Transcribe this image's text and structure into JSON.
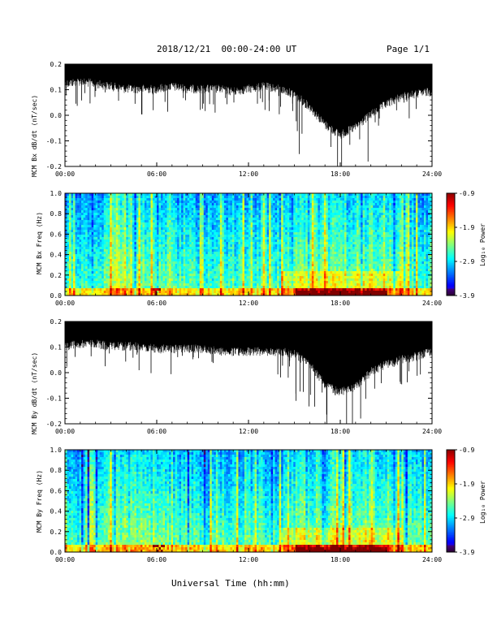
{
  "header": {
    "date_range": "2018/12/21  00:00-24:00 UT",
    "page": "Page 1/1"
  },
  "x_axis_title": "Universal Time (hh:mm)",
  "chart_data": [
    {
      "type": "line",
      "ylabel": "MCM Bx dB/dt (nT/sec)",
      "xlim": [
        0,
        24
      ],
      "ylim": [
        -0.2,
        0.2
      ],
      "x_ticks": [
        "00:00",
        "06:00",
        "12:00",
        "18:00",
        "24:00"
      ],
      "y_ticks": [
        "0.2",
        "0.1",
        "0.0",
        "-0.1",
        "-0.2"
      ],
      "envelope": {
        "hours": [
          0,
          1,
          2,
          3,
          4,
          5,
          6,
          7,
          8,
          9,
          10,
          11,
          12,
          13,
          14,
          15,
          16,
          17,
          18,
          19,
          20,
          21,
          22,
          23,
          24
        ],
        "upper": [
          0.2,
          0.2,
          0.2,
          0.2,
          0.2,
          0.2,
          0.2,
          0.2,
          0.2,
          0.2,
          0.2,
          0.2,
          0.2,
          0.2,
          0.2,
          0.2,
          0.2,
          0.2,
          0.2,
          0.2,
          0.2,
          0.2,
          0.2,
          0.2,
          0.2
        ],
        "lower": [
          0.14,
          0.15,
          0.14,
          0.13,
          0.12,
          0.12,
          0.12,
          0.13,
          0.12,
          0.12,
          0.12,
          0.11,
          0.12,
          0.13,
          0.12,
          0.1,
          0.05,
          -0.02,
          -0.06,
          -0.03,
          0.02,
          0.06,
          0.09,
          0.1,
          0.11
        ]
      }
    },
    {
      "type": "heatmap",
      "ylabel": "MCM Bx Freq (Hz)",
      "xlim": [
        0,
        24
      ],
      "ylim": [
        0,
        1.0
      ],
      "x_ticks": [
        "00:00",
        "06:00",
        "12:00",
        "18:00",
        "24:00"
      ],
      "y_ticks": [
        "1.0",
        "0.8",
        "0.6",
        "0.4",
        "0.2",
        "0.0"
      ],
      "colorbar": {
        "label": "Log₁₀ Power",
        "range": [
          -3.9,
          -0.9
        ],
        "ticks": [
          "-0.9",
          "-1.9",
          "-2.9",
          "-3.9"
        ]
      }
    },
    {
      "type": "line",
      "ylabel": "MCM By dB/dt (nT/sec)",
      "xlim": [
        0,
        24
      ],
      "ylim": [
        -0.2,
        0.2
      ],
      "x_ticks": [
        "00:00",
        "06:00",
        "12:00",
        "18:00",
        "24:00"
      ],
      "y_ticks": [
        "0.2",
        "0.1",
        "0.0",
        "-0.1",
        "-0.2"
      ],
      "envelope": {
        "hours": [
          0,
          1,
          2,
          3,
          4,
          5,
          6,
          7,
          8,
          9,
          10,
          11,
          12,
          13,
          14,
          15,
          16,
          17,
          18,
          19,
          20,
          21,
          22,
          23,
          24
        ],
        "upper": [
          0.2,
          0.2,
          0.2,
          0.2,
          0.2,
          0.2,
          0.2,
          0.2,
          0.2,
          0.2,
          0.2,
          0.2,
          0.2,
          0.2,
          0.2,
          0.2,
          0.2,
          0.2,
          0.2,
          0.2,
          0.2,
          0.2,
          0.2,
          0.2,
          0.2
        ],
        "lower": [
          0.12,
          0.13,
          0.13,
          0.12,
          0.12,
          0.12,
          0.11,
          0.11,
          0.11,
          0.11,
          0.1,
          0.1,
          0.1,
          0.1,
          0.1,
          0.09,
          0.05,
          -0.03,
          -0.06,
          -0.04,
          0.02,
          0.05,
          0.07,
          0.08,
          0.1
        ]
      }
    },
    {
      "type": "heatmap",
      "ylabel": "MCM By Freq (Hz)",
      "xlim": [
        0,
        24
      ],
      "ylim": [
        0,
        1.0
      ],
      "x_ticks": [
        "00:00",
        "06:00",
        "12:00",
        "18:00",
        "24:00"
      ],
      "y_ticks": [
        "1.0",
        "0.8",
        "0.6",
        "0.4",
        "0.2",
        "0.0"
      ],
      "colorbar": {
        "label": "Log₁₀ Power",
        "range": [
          -3.9,
          -0.9
        ],
        "ticks": [
          "-0.9",
          "-1.9",
          "-2.9",
          "-3.9"
        ]
      }
    }
  ]
}
